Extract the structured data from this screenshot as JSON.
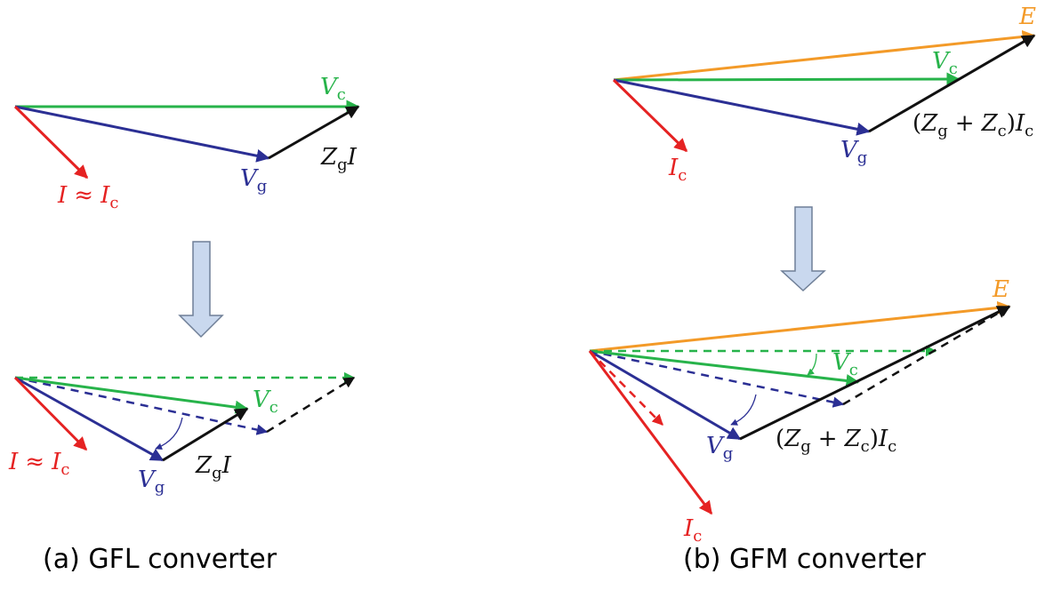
{
  "colors": {
    "red": "#e52222",
    "green": "#27b34a",
    "blue": "#2b2f94",
    "black": "#111111",
    "orange": "#f39a28",
    "arrow_fill": "#c9d8ee",
    "arrow_stroke": "#6f7f97"
  },
  "panel_a": {
    "caption": "(a) GFL converter",
    "top": {
      "v_c": {
        "main": "V",
        "sub": "c"
      },
      "v_g": {
        "main": "V",
        "sub": "g"
      },
      "z_g_i": {
        "main": "Z",
        "sub": "g",
        "tail": "I"
      },
      "i_approx": {
        "main": "I",
        "op": "≈",
        "main2": "I",
        "sub": "c"
      }
    },
    "bottom": {
      "v_c": {
        "main": "V",
        "sub": "c"
      },
      "v_g": {
        "main": "V",
        "sub": "g"
      },
      "z_g_i": {
        "main": "Z",
        "sub": "g",
        "tail": "I"
      },
      "i_approx": {
        "main": "I",
        "op": "≈",
        "main2": "I",
        "sub": "c"
      }
    }
  },
  "panel_b": {
    "caption": "(b) GFM converter",
    "top": {
      "e": "E",
      "v_c": {
        "main": "V",
        "sub": "c"
      },
      "v_g": {
        "main": "V",
        "sub": "g"
      },
      "i_c": {
        "main": "I",
        "sub": "c"
      },
      "impedance": {
        "open": "(",
        "z1": "Z",
        "s1": "g",
        "plus": "+",
        "z2": "Z",
        "s2": "c",
        "close": ")",
        "i": "I",
        "s3": "c"
      }
    },
    "bottom": {
      "e": "E",
      "v_c": {
        "main": "V",
        "sub": "c"
      },
      "v_g": {
        "main": "V",
        "sub": "g"
      },
      "i_c": {
        "main": "I",
        "sub": "c"
      },
      "impedance": {
        "open": "(",
        "z1": "Z",
        "s1": "g",
        "plus": "+",
        "z2": "Z",
        "s2": "c",
        "close": ")",
        "i": "I",
        "s3": "c"
      }
    }
  }
}
